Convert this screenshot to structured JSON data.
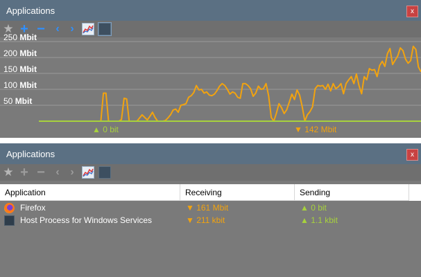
{
  "top_panel": {
    "title": "Applications",
    "close_label": "x",
    "toolbar": [
      "star-icon",
      "plus-icon",
      "minus-icon",
      "chevron-left-icon",
      "chevron-right-icon",
      "graph-icon",
      "window-icon"
    ],
    "y_axis_labels": [
      {
        "value": "250",
        "unit": "Mbit"
      },
      {
        "value": "200",
        "unit": "Mbit"
      },
      {
        "value": "150",
        "unit": "Mbit"
      },
      {
        "value": "100",
        "unit": "Mbit"
      },
      {
        "value": "50",
        "unit": "Mbit"
      }
    ],
    "sending_stat": "▲ 0 bit",
    "receiving_stat": "▼ 142 Mbit"
  },
  "bottom_panel": {
    "title": "Applications",
    "close_label": "x",
    "columns": {
      "application": "Application",
      "receiving": "Receiving",
      "sending": "Sending"
    },
    "rows": [
      {
        "name": "Firefox",
        "receiving": "▼ 161 Mbit",
        "sending": "▲ 0 bit",
        "icon": "firefox-icon"
      },
      {
        "name": "Host Process for Windows Services",
        "receiving": "▼ 211 kbit",
        "sending": "▲ 1.1 kbit",
        "icon": "service-icon"
      }
    ]
  },
  "colors": {
    "receiving": "#f2a30f",
    "sending": "#a7d13d",
    "titlebar": "#5b7083",
    "close": "#c84242"
  },
  "chart_data": {
    "type": "line",
    "y_max_mbit": 250,
    "ylim": [
      0,
      250
    ],
    "y_ticks": [
      50,
      100,
      150,
      200,
      250
    ],
    "grid": true,
    "series": [
      {
        "color": "#f2a30f",
        "values": [
          0,
          0,
          0,
          0,
          0,
          0,
          0,
          0,
          0,
          0,
          0,
          0,
          0,
          0,
          0,
          0,
          0,
          0,
          0,
          0,
          0,
          0,
          0,
          0,
          0,
          88,
          88,
          0,
          0,
          0,
          0,
          0,
          5,
          72,
          70,
          0,
          0,
          0,
          0,
          10,
          20,
          12,
          4,
          15,
          28,
          12,
          0,
          0,
          0,
          2,
          10,
          20,
          35,
          38,
          28,
          50,
          52,
          55,
          75,
          80,
          90,
          112,
          98,
          100,
          88,
          92,
          82,
          80,
          85,
          96,
          110,
          118,
          112,
          100,
          85,
          92,
          88,
          75,
          72,
          118,
          118,
          112,
          102,
          78,
          88,
          110,
          100,
          102,
          118,
          80,
          12,
          0,
          25,
          55,
          42,
          24,
          36,
          60,
          85,
          68,
          98,
          82,
          46,
          0,
          20,
          30,
          45,
          102,
          112,
          110,
          112,
          100,
          116,
          95,
          118,
          102,
          108,
          118,
          86,
          118,
          130,
          140,
          118,
          148,
          112,
          86,
          140,
          130,
          165,
          160,
          162,
          140,
          175,
          188,
          172,
          212,
          228,
          178,
          192,
          205,
          230,
          222,
          195,
          182,
          190,
          235,
          225,
          170,
          155
        ],
        "name": "receiving"
      },
      {
        "color": "#a7d13d",
        "values": [
          0,
          0,
          0,
          0,
          0,
          0,
          0,
          0,
          0,
          0,
          0,
          0,
          0,
          0,
          0,
          0,
          0,
          0,
          0,
          0,
          0,
          0,
          0,
          0,
          0,
          0,
          0,
          0,
          0,
          0,
          0,
          0,
          0,
          0,
          0,
          0,
          0,
          0,
          0,
          0,
          0,
          0,
          0,
          0,
          0,
          0,
          0,
          0,
          0,
          0,
          0,
          0,
          0,
          0,
          0,
          0,
          0,
          0,
          0,
          0,
          0,
          0,
          0,
          0,
          0,
          0,
          0,
          0,
          0,
          0,
          0,
          0,
          0,
          0,
          0,
          0,
          0,
          0,
          0,
          0,
          0,
          0,
          0,
          0,
          0,
          0,
          0,
          0,
          0,
          0,
          0,
          0,
          0,
          0,
          0,
          0,
          0,
          0,
          0,
          0,
          0,
          0,
          0,
          0,
          0,
          0,
          0,
          0,
          0,
          0,
          0,
          0,
          0,
          0,
          0,
          0,
          0,
          0,
          0,
          0,
          0,
          0,
          0,
          0,
          0,
          0,
          0,
          0,
          0,
          0,
          0,
          0,
          0,
          0,
          0,
          0,
          0,
          0,
          0,
          0,
          0,
          0,
          0,
          0,
          0,
          0,
          0,
          0,
          0,
          0,
          0,
          0,
          0,
          0,
          0
        ],
        "name": "sending"
      }
    ]
  }
}
